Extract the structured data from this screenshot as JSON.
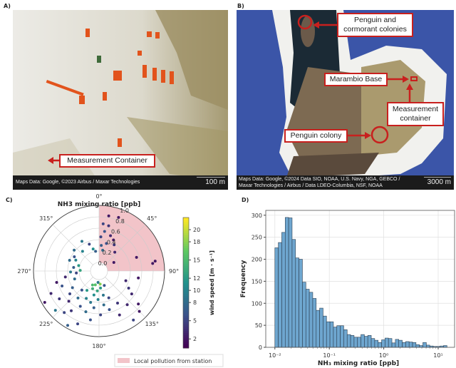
{
  "panels": {
    "a": {
      "label": "A)",
      "annotation": "Measurement Container",
      "credit": "Maps Data: Google, ©2023 Airbus / Maxar Technologies",
      "scale": "100 m"
    },
    "b": {
      "label": "B)",
      "annotations": {
        "colonies": "Penguin and cormorant colonies",
        "base": "Marambio Base",
        "container": "Measurement container",
        "colony": "Penguin colony"
      },
      "credit_line1": "Maps Data: Google, ©2024 Data SIO, NOAA, U.S. Navy, NGA, GEBCO /",
      "credit_line2": "Maxar Technologies / Airbus / Data LDEO-Columbia, NSF, NOAA",
      "scale": "3000 m"
    },
    "c": {
      "label": "C)"
    },
    "d": {
      "label": "D)"
    }
  },
  "colors": {
    "annotation": "#c8201e",
    "pollution_sector": "#f2c4c9",
    "histogram_bar": "#6ea6cf",
    "histogram_edge": "#2c3e50"
  },
  "chart_data": [
    {
      "type": "scatter",
      "subtype": "polar",
      "title": "NH3 mixing ratio [ppb]",
      "angle_ticks": [
        "0°",
        "45°",
        "90°",
        "135°",
        "180°",
        "225°",
        "270°",
        "315°"
      ],
      "radial_ticks": [
        "0.0",
        "0.2",
        "0.4",
        "0.6",
        "0.8",
        "1.0"
      ],
      "rlim": [
        0,
        1
      ],
      "colorbar": {
        "label": "wind speed [m · s⁻¹]",
        "ticks": [
          "2",
          "5",
          "8",
          "10",
          "12",
          "15",
          "18",
          "20"
        ],
        "range": [
          0.5,
          22
        ],
        "colormap": "viridis"
      },
      "shaded_sector": {
        "from_deg": 0,
        "to_deg": 90,
        "legend": "Local pollution from station"
      },
      "legend_position": "bottom-right",
      "points_dir_ppb_ws": [
        [
          10,
          0.83,
          2
        ],
        [
          20,
          0.85,
          2
        ],
        [
          5,
          0.68,
          5
        ],
        [
          12,
          0.66,
          4
        ],
        [
          8,
          0.55,
          6
        ],
        [
          18,
          0.5,
          3
        ],
        [
          25,
          0.45,
          2
        ],
        [
          3,
          0.45,
          5
        ],
        [
          30,
          0.38,
          4
        ],
        [
          15,
          0.35,
          6
        ],
        [
          5,
          0.3,
          7
        ],
        [
          40,
          0.28,
          3
        ],
        [
          10,
          0.22,
          8
        ],
        [
          60,
          0.15,
          2
        ],
        [
          80,
          0.85,
          2
        ],
        [
          82,
          0.8,
          2
        ],
        [
          70,
          0.55,
          2
        ],
        [
          100,
          0.55,
          2
        ],
        [
          110,
          0.35,
          3
        ],
        [
          120,
          0.45,
          4
        ],
        [
          125,
          0.55,
          3
        ],
        [
          130,
          0.75,
          2
        ],
        [
          140,
          0.62,
          3
        ],
        [
          135,
          0.85,
          2
        ],
        [
          145,
          0.9,
          5
        ],
        [
          150,
          0.5,
          4
        ],
        [
          155,
          0.7,
          3
        ],
        [
          160,
          0.35,
          5
        ],
        [
          165,
          0.55,
          6
        ],
        [
          170,
          0.28,
          9
        ],
        [
          172,
          0.45,
          8
        ],
        [
          175,
          0.15,
          12
        ],
        [
          178,
          0.62,
          5
        ],
        [
          182,
          0.35,
          10
        ],
        [
          185,
          0.2,
          13
        ],
        [
          188,
          0.5,
          7
        ],
        [
          190,
          0.72,
          6
        ],
        [
          192,
          0.28,
          11
        ],
        [
          195,
          0.42,
          9
        ],
        [
          198,
          0.6,
          8
        ],
        [
          200,
          0.18,
          14
        ],
        [
          202,
          0.85,
          5
        ],
        [
          205,
          0.38,
          10
        ],
        [
          208,
          0.55,
          6
        ],
        [
          210,
          0.95,
          7
        ],
        [
          212,
          0.25,
          12
        ],
        [
          215,
          0.7,
          4
        ],
        [
          218,
          0.45,
          8
        ],
        [
          220,
          0.8,
          5
        ],
        [
          222,
          0.3,
          6
        ],
        [
          225,
          0.6,
          3
        ],
        [
          228,
          0.88,
          9
        ],
        [
          232,
          0.5,
          5
        ],
        [
          235,
          0.7,
          4
        ],
        [
          238,
          0.4,
          7
        ],
        [
          240,
          0.95,
          2
        ],
        [
          245,
          0.78,
          3
        ],
        [
          248,
          0.55,
          6
        ],
        [
          252,
          0.3,
          8
        ],
        [
          255,
          0.62,
          2
        ],
        [
          260,
          0.45,
          3
        ],
        [
          265,
          0.25,
          5
        ],
        [
          268,
          0.35,
          9
        ],
        [
          272,
          0.18,
          13
        ],
        [
          278,
          0.3,
          7
        ],
        [
          285,
          0.22,
          12
        ],
        [
          290,
          0.4,
          8
        ],
        [
          295,
          0.3,
          10
        ],
        [
          300,
          0.35,
          6
        ],
        [
          310,
          0.42,
          8
        ],
        [
          320,
          0.3,
          10
        ],
        [
          330,
          0.45,
          9
        ],
        [
          340,
          0.35,
          5
        ],
        [
          345,
          0.25,
          11
        ],
        [
          350,
          0.2,
          7
        ],
        [
          195,
          0.1,
          16
        ],
        [
          175,
          0.08,
          18
        ],
        [
          205,
          0.12,
          15
        ],
        [
          185,
          0.05,
          9
        ],
        [
          160,
          0.12,
          6
        ]
      ]
    },
    {
      "type": "bar",
      "subtype": "histogram",
      "xlabel": "NH₃ mixing ratio [ppb]",
      "ylabel": "Frequency",
      "xscale": "log",
      "xlim": [
        0.0068,
        20
      ],
      "ylim": [
        0,
        311
      ],
      "grid": true,
      "xtick_labels": [
        "10⁻²",
        "10⁻¹",
        "10⁰",
        "10¹"
      ],
      "xticks": [
        0.01,
        0.1,
        1,
        10
      ],
      "ytick_labels": [
        "0",
        "50",
        "100",
        "150",
        "200",
        "250",
        "300"
      ],
      "bin_range": [
        0.01,
        14.5
      ],
      "values": [
        226,
        238,
        261,
        295,
        294,
        245,
        203,
        200,
        148,
        132,
        125,
        111,
        84,
        89,
        71,
        58,
        58,
        46,
        49,
        49,
        40,
        29,
        27,
        23,
        23,
        29,
        25,
        27,
        20,
        16,
        11,
        17,
        21,
        20,
        10,
        18,
        16,
        11,
        13,
        12,
        11,
        6,
        4,
        11,
        5,
        3,
        2,
        2,
        3,
        4
      ]
    }
  ]
}
